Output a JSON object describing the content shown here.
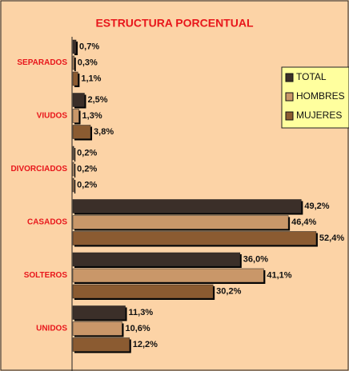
{
  "chart_data": {
    "type": "bar",
    "orientation": "horizontal",
    "title": "ESTRUCTURA PORCENTUAL",
    "categories": [
      "SEPARADOS",
      "VIUDOS",
      "DIVORCIADOS",
      "CASADOS",
      "SOLTEROS",
      "UNIDOS"
    ],
    "series": [
      {
        "name": "TOTAL",
        "color": "#3b2f29",
        "values": [
          0.7,
          2.5,
          0.2,
          49.2,
          36.0,
          11.3
        ],
        "value_labels": [
          "0,7%",
          "2,5%",
          "0,2%",
          "49,2%",
          "36,0%",
          "11,3%"
        ]
      },
      {
        "name": "HOMBRES",
        "color": "#c99769",
        "values": [
          0.3,
          1.3,
          0.2,
          46.4,
          41.1,
          10.6
        ],
        "value_labels": [
          "0,3%",
          "1,3%",
          "0,2%",
          "46,4%",
          "41,1%",
          "10,6%"
        ]
      },
      {
        "name": "MUJERES",
        "color": "#8b5b31",
        "values": [
          1.1,
          3.8,
          0.2,
          52.4,
          30.2,
          12.2
        ],
        "value_labels": [
          "1,1%",
          "3,8%",
          "0,2%",
          "52,4%",
          "30,2%",
          "12,2%"
        ]
      }
    ],
    "xlim": [
      0,
      60
    ],
    "legend": "upper right"
  }
}
